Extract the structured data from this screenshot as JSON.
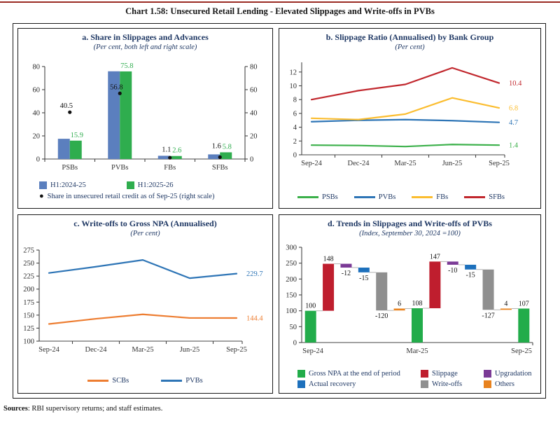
{
  "page": {
    "title": "Chart 1.58: Unsecured Retail Lending - Elevated Slippages and Write-offs in PVBs",
    "sources_label": "Sources",
    "sources_rest": ": RBI supervisory returns; and staff estimates.",
    "accent_rule_color": "#9b2c24"
  },
  "chart_data": [
    {
      "id": "a",
      "type": "bar",
      "title": "a. Share in Slippages and Advances",
      "subtitle": "(Per cent, both left and right scale)",
      "categories": [
        "PSBs",
        "PVBs",
        "FBs",
        "SFBs"
      ],
      "series": [
        {
          "name": "H1:2024-25",
          "color": "#5b7fbe",
          "values": [
            17.5,
            75.9,
            2.8,
            4.0
          ]
        },
        {
          "name": "H1:2025-26",
          "color": "#2fad4e",
          "values": [
            15.9,
            75.8,
            2.6,
            5.8
          ],
          "labels": [
            "15.9",
            "75.8",
            "2.6",
            "5.8"
          ]
        }
      ],
      "dot_series": {
        "name": "Share in unsecured retail credit as of Sep-25 (right scale)",
        "color": "#111111",
        "values": [
          40.5,
          56.8,
          1.1,
          1.6
        ],
        "labels": [
          "40.5",
          "56.8",
          "1.1",
          "1.6"
        ]
      },
      "ylim": [
        0,
        80
      ],
      "yticks": [
        0,
        20,
        40,
        60,
        80
      ],
      "dual_axis": true,
      "grid": false
    },
    {
      "id": "b",
      "type": "line",
      "title": "b. Slippage Ratio (Annualised) by Bank Group",
      "subtitle": "(Per cent)",
      "x": [
        "Sep-24",
        "Dec-24",
        "Mar-25",
        "Jun-25",
        "Sep-25"
      ],
      "series": [
        {
          "name": "PSBs",
          "color": "#3bb04a",
          "values": [
            1.4,
            1.35,
            1.2,
            1.5,
            1.4
          ],
          "end_label": "1.4"
        },
        {
          "name": "PVBs",
          "color": "#2e75b6",
          "values": [
            4.8,
            5.0,
            5.1,
            4.95,
            4.7
          ],
          "end_label": "4.7"
        },
        {
          "name": "FBs",
          "color": "#fbbd2f",
          "values": [
            5.3,
            5.1,
            5.9,
            8.25,
            6.8
          ],
          "end_label": "6.8"
        },
        {
          "name": "SFBs",
          "color": "#c1272d",
          "values": [
            8.0,
            9.3,
            10.2,
            12.6,
            10.4
          ],
          "end_label": "10.4"
        }
      ],
      "ylim": [
        0,
        13.4
      ],
      "yticks": [
        0,
        2,
        4,
        6,
        8,
        10,
        12
      ],
      "grid": false,
      "legend_position": "bottom"
    },
    {
      "id": "c",
      "type": "line",
      "title": "c. Write-offs to Gross NPA (Annualised)",
      "subtitle": "(Per cent)",
      "x": [
        "Sep-24",
        "Dec-24",
        "Mar-25",
        "Jun-25",
        "Sep-25"
      ],
      "series": [
        {
          "name": "SCBs",
          "color": "#ed7d31",
          "values": [
            133,
            143,
            151.5,
            144.5,
            144.4
          ],
          "end_label": "144.4"
        },
        {
          "name": "PVBs",
          "color": "#2e75b6",
          "values": [
            231,
            243,
            256,
            221,
            229.7
          ],
          "end_label": "229.7"
        }
      ],
      "ylim": [
        100,
        275
      ],
      "yticks": [
        100,
        125,
        150,
        175,
        200,
        225,
        250,
        275
      ],
      "grid": false,
      "legend_position": "bottom"
    },
    {
      "id": "d",
      "type": "waterfall",
      "title": "d. Trends in Slippages and Write-offs of PVBs",
      "subtitle": "(Index, September 30, 2024 =100)",
      "ylim": [
        0,
        300
      ],
      "yticks": [
        0,
        50,
        100,
        150,
        200,
        250,
        300
      ],
      "palette": {
        "green": "#22ac4a",
        "red": "#bf1e2e",
        "purple": "#7b3a96",
        "blue": "#1d70bc",
        "gray": "#8f8f8f",
        "orange": "#e8821e"
      },
      "bars": [
        {
          "name": "gross-npa-sep24",
          "color": "green",
          "y0": 0,
          "y1": 100,
          "label": "100",
          "label_pos": "above",
          "end_level": 100
        },
        {
          "name": "slippage-1",
          "color": "red",
          "y0": 100,
          "y1": 248,
          "label": "148",
          "label_pos": "above",
          "end_level": 248
        },
        {
          "name": "upgradation-1",
          "color": "purple",
          "y0": 236,
          "y1": 248,
          "label": "-12",
          "label_pos": "below",
          "end_level": 236
        },
        {
          "name": "recovery-1",
          "color": "blue",
          "y0": 221,
          "y1": 236,
          "label": "-15",
          "label_pos": "below",
          "end_level": 221
        },
        {
          "name": "write-offs-1",
          "color": "gray",
          "y0": 101,
          "y1": 221,
          "label": "-120",
          "label_pos": "below",
          "end_level": 101
        },
        {
          "name": "others-1",
          "color": "orange",
          "y0": 101,
          "y1": 107,
          "label": "6",
          "label_pos": "above",
          "end_level": 107
        },
        {
          "name": "gross-npa-mar25",
          "color": "green",
          "y0": 0,
          "y1": 108,
          "label": "108",
          "label_pos": "above",
          "end_level": 108
        },
        {
          "name": "slippage-2",
          "color": "red",
          "y0": 108,
          "y1": 255,
          "label": "147",
          "label_pos": "above",
          "end_level": 255
        },
        {
          "name": "upgradation-2",
          "color": "purple",
          "y0": 245,
          "y1": 255,
          "label": "-10",
          "label_pos": "below",
          "end_level": 245
        },
        {
          "name": "recovery-2",
          "color": "blue",
          "y0": 230,
          "y1": 245,
          "label": "-15",
          "label_pos": "below",
          "end_level": 230
        },
        {
          "name": "write-offs-2",
          "color": "gray",
          "y0": 103,
          "y1": 230,
          "label": "-127",
          "label_pos": "below",
          "end_level": 103
        },
        {
          "name": "others-2",
          "color": "orange",
          "y0": 103,
          "y1": 107,
          "label": "4",
          "label_pos": "above",
          "end_level": 107
        },
        {
          "name": "gross-npa-sep25",
          "color": "green",
          "y0": 0,
          "y1": 107,
          "label": "107",
          "label_pos": "above",
          "end_level": 107
        }
      ],
      "x_labels": [
        {
          "text": "Sep-24",
          "bar": 0
        },
        {
          "text": "Mar-25",
          "bar": 6
        },
        {
          "text": "Sep-25",
          "bar": 12
        }
      ],
      "legend": [
        {
          "label": "Gross NPA at the end of period",
          "color": "green"
        },
        {
          "label": "Slippage",
          "color": "red"
        },
        {
          "label": "Upgradation",
          "color": "purple"
        },
        {
          "label": "Actual recovery",
          "color": "blue"
        },
        {
          "label": "Write-offs",
          "color": "gray"
        },
        {
          "label": "Others",
          "color": "orange"
        }
      ],
      "grid": false
    }
  ]
}
